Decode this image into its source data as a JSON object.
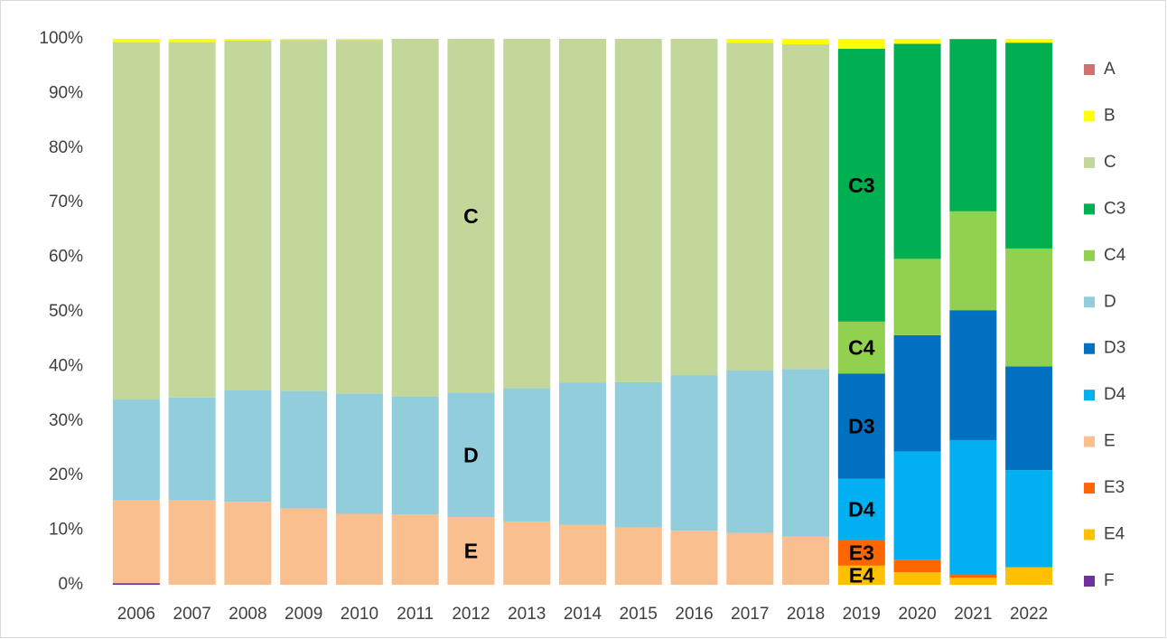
{
  "chart_data": {
    "type": "bar",
    "stacked": true,
    "categories": [
      "2006",
      "2007",
      "2008",
      "2009",
      "2010",
      "2011",
      "2012",
      "2013",
      "2014",
      "2015",
      "2016",
      "2017",
      "2018",
      "2019",
      "2020",
      "2021",
      "2022"
    ],
    "series": [
      {
        "name": "A",
        "color": "#d07070",
        "values": [
          0,
          0,
          0,
          0,
          0,
          0,
          0,
          0,
          0,
          0,
          0,
          0,
          0,
          0,
          0,
          0.1,
          0
        ]
      },
      {
        "name": "B",
        "color": "#ffff00",
        "values": [
          0.6,
          0.6,
          0.3,
          0.2,
          0.2,
          0,
          0,
          0,
          0,
          0,
          0,
          0.7,
          1,
          1.8,
          0.9,
          0,
          0.7
        ]
      },
      {
        "name": "C",
        "color": "#c4d79b",
        "values": [
          65.4,
          65.1,
          64.1,
          64.3,
          64.8,
          65.5,
          64.8,
          64,
          63,
          62.9,
          61.6,
          60,
          59.5,
          0,
          0,
          0,
          0
        ]
      },
      {
        "name": "C3",
        "color": "#00b050",
        "values": [
          0,
          0,
          0,
          0,
          0,
          0,
          0,
          0,
          0,
          0,
          0,
          0,
          0,
          50,
          39.4,
          31.5,
          37.7
        ]
      },
      {
        "name": "C4",
        "color": "#92d050",
        "values": [
          0,
          0,
          0,
          0,
          0,
          0,
          0,
          0,
          0,
          0,
          0,
          0,
          0,
          9.5,
          14,
          18.1,
          21.6
        ]
      },
      {
        "name": "D",
        "color": "#92cddc",
        "values": [
          18.5,
          18.8,
          20.4,
          21.5,
          22,
          21.6,
          22.8,
          24.4,
          26,
          26.6,
          28.5,
          29.8,
          30.7,
          0,
          0,
          0,
          0
        ]
      },
      {
        "name": "D3",
        "color": "#0070c0",
        "values": [
          0,
          0,
          0,
          0,
          0,
          0,
          0,
          0,
          0,
          0,
          0,
          0,
          0,
          19.3,
          21.3,
          23.8,
          19
        ]
      },
      {
        "name": "D4",
        "color": "#00b0f0",
        "values": [
          0,
          0,
          0,
          0,
          0,
          0,
          0,
          0,
          0,
          0,
          0,
          0,
          0,
          11.2,
          19.8,
          24.6,
          17.8
        ]
      },
      {
        "name": "E",
        "color": "#fabf8f",
        "values": [
          15.2,
          15.5,
          15.2,
          14,
          13,
          12.9,
          12.4,
          11.6,
          11,
          10.5,
          9.9,
          9.5,
          8.8,
          0,
          0,
          0,
          0
        ]
      },
      {
        "name": "E3",
        "color": "#ff6600",
        "values": [
          0,
          0,
          0,
          0,
          0,
          0,
          0,
          0,
          0,
          0,
          0,
          0,
          0,
          4.7,
          2.3,
          0.6,
          0
        ]
      },
      {
        "name": "E4",
        "color": "#ffc000",
        "values": [
          0,
          0,
          0,
          0,
          0,
          0,
          0,
          0,
          0,
          0,
          0,
          0,
          0,
          3.5,
          2.3,
          1.3,
          3.2
        ]
      },
      {
        "name": "F",
        "color": "#7030a0",
        "values": [
          0.3,
          0,
          0,
          0,
          0,
          0,
          0,
          0,
          0,
          0,
          0,
          0,
          0,
          0,
          0,
          0,
          0
        ]
      }
    ],
    "ylim": [
      0,
      100
    ],
    "yticks": [
      {
        "value": 0,
        "label": "0%"
      },
      {
        "value": 10,
        "label": "10%"
      },
      {
        "value": 20,
        "label": "20%"
      },
      {
        "value": 30,
        "label": "30%"
      },
      {
        "value": 40,
        "label": "40%"
      },
      {
        "value": 50,
        "label": "50%"
      },
      {
        "value": 60,
        "label": "60%"
      },
      {
        "value": 70,
        "label": "70%"
      },
      {
        "value": 80,
        "label": "80%"
      },
      {
        "value": 90,
        "label": "90%"
      },
      {
        "value": 100,
        "label": "100%"
      }
    ],
    "grid": false,
    "legend": "right",
    "annotations": [
      {
        "text": "C",
        "x": "2012"
      },
      {
        "text": "D",
        "x": "2012"
      },
      {
        "text": "E",
        "x": "2012"
      },
      {
        "text": "C3",
        "x": "2019"
      },
      {
        "text": "C4",
        "x": "2019"
      },
      {
        "text": "D3",
        "x": "2019"
      },
      {
        "text": "D4",
        "x": "2019"
      },
      {
        "text": "E3",
        "x": "2019"
      },
      {
        "text": "E4",
        "x": "2019"
      }
    ]
  }
}
